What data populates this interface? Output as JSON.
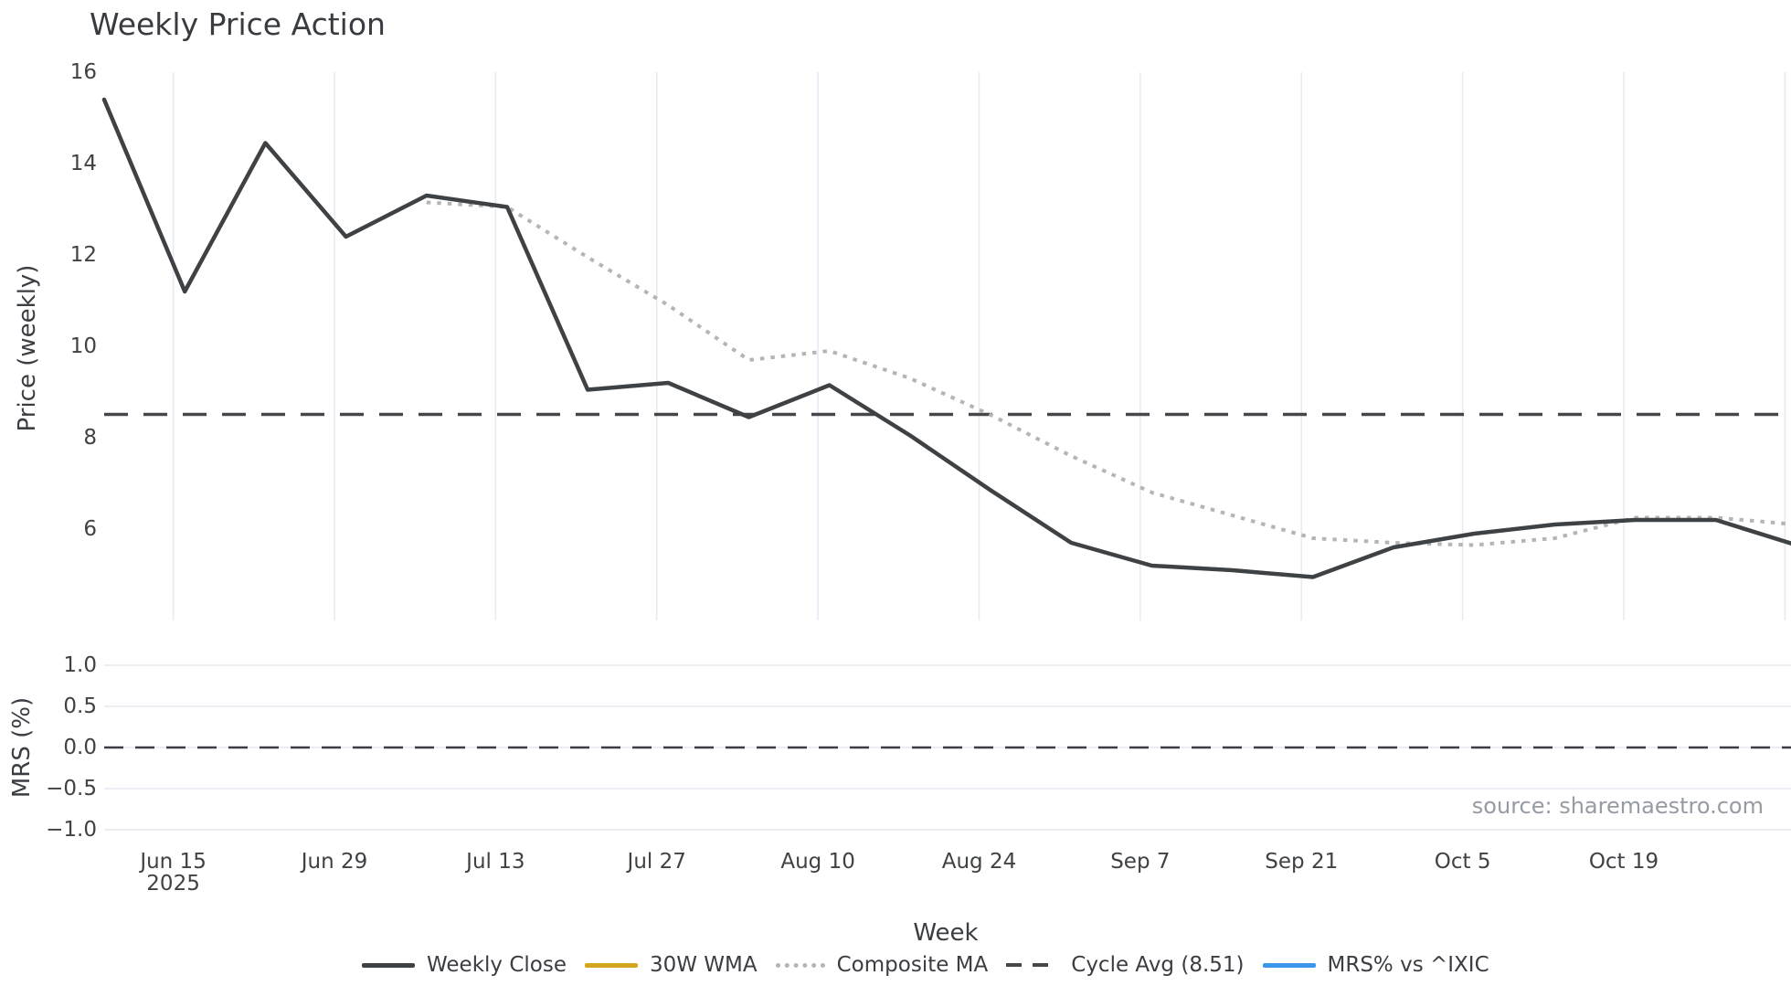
{
  "title": "Weekly Price Action",
  "source": "source: sharemaestro.com",
  "legend": {
    "items": [
      {
        "label": "Weekly Close",
        "color": "#3f4245",
        "style": "solid"
      },
      {
        "label": "30W WMA",
        "color": "#d4a51f",
        "style": "solid"
      },
      {
        "label": "Composite MA",
        "color": "#b5b5b5",
        "style": "dotted"
      },
      {
        "label": "Cycle Avg (8.51)",
        "color": "#45474a",
        "style": "dashed"
      },
      {
        "label": "MRS% vs ^IXIC",
        "color": "#3b96ea",
        "style": "solid"
      }
    ]
  },
  "chart_data": {
    "type": "line",
    "title": "Weekly Price Action",
    "x_weeks": [
      "Jun 9",
      "Jun 16",
      "Jun 23",
      "Jun 30",
      "Jul 7",
      "Jul 14",
      "Jul 21",
      "Jul 28",
      "Aug 4",
      "Aug 11",
      "Aug 18",
      "Aug 25",
      "Sep 1",
      "Sep 8",
      "Sep 15",
      "Sep 22",
      "Sep 29",
      "Oct 6",
      "Oct 13",
      "Oct 20",
      "Oct 27",
      "Nov 3"
    ],
    "series": [
      {
        "name": "Weekly Close",
        "panel": "price",
        "values": [
          15.4,
          11.2,
          14.45,
          12.4,
          13.3,
          13.05,
          9.05,
          9.2,
          8.45,
          9.15,
          8.05,
          6.85,
          5.7,
          5.2,
          5.1,
          4.95,
          5.6,
          5.9,
          6.1,
          6.2,
          6.2,
          5.65
        ]
      },
      {
        "name": "30W WMA",
        "panel": "price",
        "values": []
      },
      {
        "name": "Composite MA",
        "panel": "price",
        "values": [
          null,
          null,
          null,
          null,
          13.15,
          13.05,
          11.95,
          10.9,
          9.7,
          9.9,
          9.3,
          8.5,
          7.6,
          6.8,
          6.3,
          5.8,
          5.7,
          5.65,
          5.8,
          6.25,
          6.25,
          6.1
        ]
      },
      {
        "name": "Cycle Avg",
        "panel": "price",
        "constant": 8.51
      },
      {
        "name": "MRS% vs ^IXIC",
        "panel": "mrs",
        "values": []
      }
    ],
    "price_axis": {
      "label": "Price (weekly)",
      "ticks": [
        "16",
        "14",
        "12",
        "10",
        "8",
        "6"
      ],
      "tick_values": [
        16,
        14,
        12,
        10,
        8,
        6
      ],
      "ylim": [
        4,
        16
      ],
      "grid": "vertical-only"
    },
    "mrs_axis": {
      "label": "MRS (%)",
      "ticks": [
        "1.0",
        "0.5",
        "0.0",
        "−0.5",
        "−1.0"
      ],
      "tick_values": [
        1.0,
        0.5,
        0.0,
        -0.5,
        -1.0
      ],
      "ylim": [
        -1.25,
        1.25
      ],
      "zero_line": 0.0,
      "grid": "horizontal"
    },
    "x_axis": {
      "label": "Week",
      "year_label": "2025",
      "tick_labels": [
        "Jun 15",
        "Jun 29",
        "Jul 13",
        "Jul 27",
        "Aug 10",
        "Aug 24",
        "Sep 7",
        "Sep 21",
        "Oct 5",
        "Oct 19"
      ],
      "tick_interval_weeks": 2
    },
    "legend_position": "bottom-center"
  }
}
